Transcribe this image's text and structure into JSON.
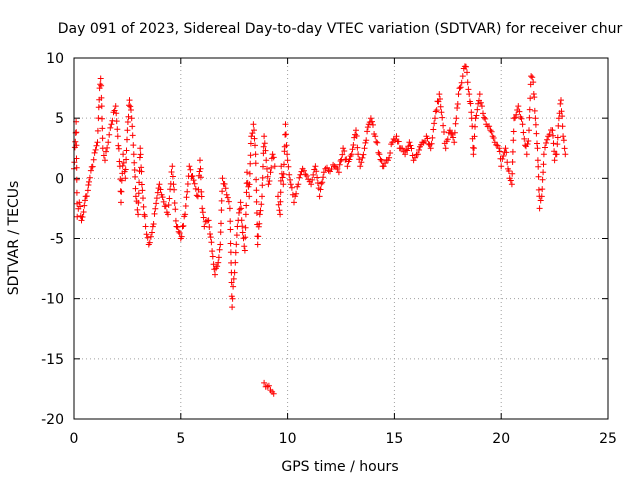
{
  "chart_data": {
    "type": "scatter",
    "title": "Day 091 of 2023, Sidereal Day-to-day VTEC variation (SDTVAR) for receiver chur",
    "xlabel": "GPS time / hours",
    "ylabel": "SDTVAR / TECUs",
    "xlim": [
      0,
      25
    ],
    "ylim": [
      -20,
      10
    ],
    "xticks": [
      0,
      5,
      10,
      15,
      20,
      25
    ],
    "yticks": [
      -20,
      -15,
      -10,
      -5,
      0,
      5,
      10
    ],
    "grid": true,
    "marker": "+",
    "color": "#ff0000",
    "series": [
      {
        "name": "SDTVAR",
        "trace": [
          [
            0.0,
            0.8
          ],
          [
            0.1,
            4.7
          ],
          [
            0.15,
            -3.2
          ],
          [
            0.25,
            -2.0
          ],
          [
            0.35,
            -3.5
          ],
          [
            0.45,
            -2.8
          ],
          [
            0.55,
            -1.5
          ],
          [
            0.65,
            -1.0
          ],
          [
            0.7,
            -0.3
          ],
          [
            1.1,
            3.0
          ],
          [
            1.2,
            7.5
          ],
          [
            1.25,
            8.3
          ],
          [
            1.3,
            6.0
          ],
          [
            1.35,
            2.5
          ],
          [
            1.45,
            1.5
          ],
          [
            1.6,
            3.0
          ],
          [
            1.75,
            4.5
          ],
          [
            1.85,
            5.5
          ],
          [
            1.95,
            6.0
          ],
          [
            2.05,
            3.5
          ],
          [
            2.15,
            1.0
          ],
          [
            2.2,
            -2.0
          ],
          [
            2.3,
            2.0
          ],
          [
            2.4,
            0.0
          ],
          [
            2.5,
            4.0
          ],
          [
            2.6,
            6.5
          ],
          [
            2.7,
            5.0
          ],
          [
            2.8,
            2.0
          ],
          [
            2.9,
            -1.5
          ],
          [
            3.0,
            -3.0
          ],
          [
            3.1,
            2.5
          ],
          [
            3.2,
            -1.0
          ],
          [
            3.35,
            -4.0
          ],
          [
            3.5,
            -5.5
          ],
          [
            3.65,
            -4.5
          ],
          [
            4.0,
            -0.5
          ],
          [
            4.4,
            -3.0
          ],
          [
            4.6,
            1.0
          ],
          [
            4.8,
            -4.0
          ],
          [
            5.0,
            -5.0
          ],
          [
            5.2,
            -3.0
          ],
          [
            5.4,
            1.0
          ],
          [
            5.8,
            -1.5
          ],
          [
            5.9,
            1.5
          ],
          [
            6.0,
            -2.5
          ],
          [
            6.1,
            -4.0
          ],
          [
            6.3,
            -3.5
          ],
          [
            6.5,
            -6.5
          ],
          [
            6.6,
            -8.0
          ],
          [
            6.75,
            -7.0
          ],
          [
            6.85,
            -5.5
          ],
          [
            6.95,
            0.0
          ],
          [
            7.3,
            -2.5
          ],
          [
            7.4,
            -10.7
          ],
          [
            7.45,
            -9.0
          ],
          [
            7.55,
            -7.0
          ],
          [
            7.65,
            -4.0
          ],
          [
            7.8,
            -2.0
          ],
          [
            7.9,
            -4.5
          ],
          [
            8.0,
            -6.0
          ],
          [
            8.05,
            -3.0
          ],
          [
            8.1,
            0.5
          ],
          [
            8.2,
            -1.5
          ],
          [
            8.3,
            3.5
          ],
          [
            8.4,
            4.5
          ],
          [
            8.5,
            2.0
          ],
          [
            8.6,
            -5.5
          ],
          [
            8.7,
            -3.0
          ],
          [
            8.8,
            -1.5
          ],
          [
            8.9,
            3.5
          ],
          [
            9.0,
            1.5
          ],
          [
            9.1,
            -0.5
          ],
          [
            9.2,
            0.5
          ],
          [
            9.3,
            2.0
          ],
          [
            9.4,
            1.0
          ],
          [
            8.9,
            -17.0
          ],
          [
            9.05,
            -17.3
          ],
          [
            9.2,
            -17.6
          ],
          [
            9.35,
            -17.9
          ],
          [
            9.55,
            -1.5
          ],
          [
            9.65,
            -3.0
          ],
          [
            9.7,
            1.0
          ],
          [
            9.8,
            -0.5
          ],
          [
            9.9,
            4.5
          ],
          [
            10.0,
            1.5
          ],
          [
            10.15,
            -0.5
          ],
          [
            10.3,
            -2.0
          ],
          [
            10.5,
            -0.5
          ],
          [
            10.7,
            0.8
          ],
          [
            10.9,
            0.2
          ],
          [
            11.1,
            -0.5
          ],
          [
            11.3,
            1.0
          ],
          [
            11.5,
            -1.5
          ],
          [
            11.7,
            0.5
          ],
          [
            12.2,
            1.0
          ],
          [
            12.4,
            0.5
          ],
          [
            12.6,
            2.5
          ],
          [
            12.8,
            1.0
          ],
          [
            13.0,
            2.0
          ],
          [
            13.2,
            4.0
          ],
          [
            13.3,
            2.0
          ],
          [
            13.4,
            1.0
          ],
          [
            13.6,
            2.5
          ],
          [
            13.8,
            4.5
          ],
          [
            13.9,
            5.0
          ],
          [
            14.1,
            3.5
          ],
          [
            14.3,
            2.0
          ],
          [
            14.5,
            1.0
          ],
          [
            14.7,
            1.5
          ],
          [
            14.9,
            3.0
          ],
          [
            15.1,
            3.5
          ],
          [
            15.3,
            2.5
          ],
          [
            15.5,
            2.0
          ],
          [
            15.7,
            3.0
          ],
          [
            15.9,
            1.5
          ],
          [
            16.1,
            2.0
          ],
          [
            16.3,
            3.0
          ],
          [
            16.5,
            3.5
          ],
          [
            16.7,
            2.5
          ],
          [
            16.9,
            5.0
          ],
          [
            17.1,
            7.0
          ],
          [
            17.2,
            5.5
          ],
          [
            17.4,
            2.5
          ],
          [
            17.6,
            4.0
          ],
          [
            17.8,
            3.0
          ],
          [
            17.9,
            5.0
          ],
          [
            18.0,
            7.0
          ],
          [
            18.2,
            8.5
          ],
          [
            18.3,
            9.3
          ],
          [
            18.4,
            8.8
          ],
          [
            18.5,
            7.0
          ],
          [
            18.6,
            5.5
          ],
          [
            18.7,
            2.0
          ],
          [
            18.8,
            5.0
          ],
          [
            19.0,
            7.0
          ],
          [
            19.1,
            6.0
          ],
          [
            19.3,
            4.5
          ],
          [
            19.5,
            4.0
          ],
          [
            19.7,
            3.0
          ],
          [
            19.9,
            2.5
          ],
          [
            20.0,
            1.0
          ],
          [
            20.2,
            2.5
          ],
          [
            20.4,
            0.0
          ],
          [
            20.5,
            -0.5
          ],
          [
            20.6,
            5.0
          ],
          [
            20.8,
            6.0
          ],
          [
            21.0,
            4.5
          ],
          [
            21.2,
            2.0
          ],
          [
            21.3,
            4.0
          ],
          [
            21.4,
            8.5
          ],
          [
            21.5,
            8.0
          ],
          [
            21.6,
            5.0
          ],
          [
            21.7,
            2.5
          ],
          [
            21.8,
            -2.5
          ],
          [
            21.9,
            -1.5
          ],
          [
            22.0,
            2.0
          ],
          [
            22.2,
            3.5
          ],
          [
            22.4,
            4.0
          ],
          [
            22.5,
            1.5
          ],
          [
            22.6,
            2.0
          ],
          [
            22.7,
            5.0
          ],
          [
            22.8,
            6.5
          ],
          [
            22.9,
            3.5
          ],
          [
            23.0,
            2.0
          ]
        ]
      }
    ]
  }
}
